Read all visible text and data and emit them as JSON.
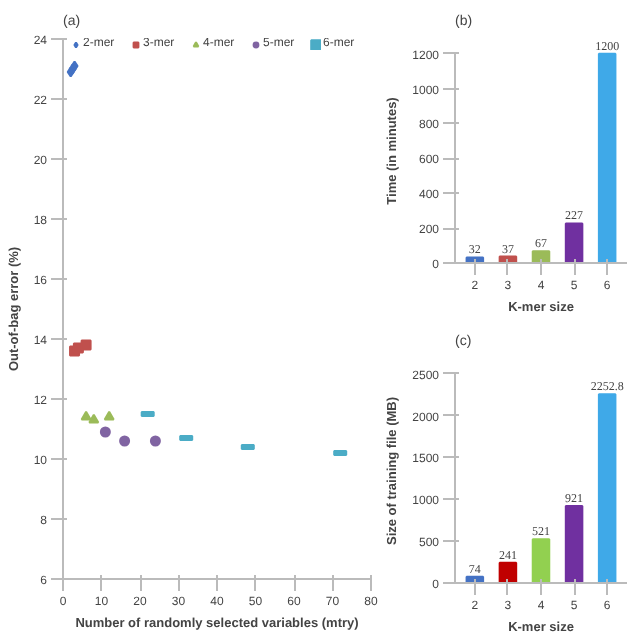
{
  "chart_data": [
    {
      "type": "scatter",
      "title": "(a)",
      "xlabel": "Number of randomly selected variables (mtry)",
      "ylabel": "Out-of-bag error (%)",
      "xlim": [
        0,
        80
      ],
      "xticks": [
        0,
        10,
        20,
        30,
        40,
        50,
        60,
        70,
        80
      ],
      "ylim": [
        6,
        24
      ],
      "yticks": [
        6,
        8,
        10,
        12,
        14,
        16,
        18,
        20,
        22,
        24
      ],
      "grid": false,
      "legend": "top",
      "series": [
        {
          "name": "2-mer",
          "color": "#4472c4",
          "marker": "diamond",
          "x": [
            2,
            2.5,
            3
          ],
          "values": [
            22.9,
            23.0,
            23.1
          ]
        },
        {
          "name": "3-mer",
          "color": "#c0504d",
          "marker": "square",
          "x": [
            3,
            4,
            6
          ],
          "values": [
            13.6,
            13.7,
            13.8
          ]
        },
        {
          "name": "4-mer",
          "color": "#9bbb59",
          "marker": "triangle",
          "x": [
            6,
            8,
            12
          ],
          "values": [
            11.4,
            11.3,
            11.4
          ]
        },
        {
          "name": "5-mer",
          "color": "#8064a2",
          "marker": "circle",
          "x": [
            11,
            16,
            24
          ],
          "values": [
            10.9,
            10.6,
            10.6
          ]
        },
        {
          "name": "6-mer",
          "color": "#4bacc6",
          "x": [
            22,
            32,
            48,
            72
          ],
          "values": [
            11.5,
            10.7,
            10.4,
            10.2
          ]
        }
      ]
    },
    {
      "type": "bar",
      "title": "(b)",
      "xlabel": "K-mer size",
      "ylabel": "Time (in minutes)",
      "categories": [
        "2",
        "3",
        "4",
        "5",
        "6"
      ],
      "values": [
        32,
        37,
        67,
        227,
        1200
      ],
      "colors": [
        "#4472c4",
        "#c0504d",
        "#9bbb59",
        "#7030a0",
        "#3fa9e8"
      ],
      "ylim": [
        0,
        1200
      ],
      "yticks": [
        0,
        200,
        400,
        600,
        800,
        1000,
        1200
      ],
      "data_labels": true,
      "grid": false
    },
    {
      "type": "bar",
      "title": "(c)",
      "xlabel": "K-mer size",
      "ylabel": "Size of training file (MB)",
      "categories": [
        "2",
        "3",
        "4",
        "5",
        "6"
      ],
      "values": [
        74,
        241,
        521,
        921,
        2252.8
      ],
      "colors": [
        "#4472c4",
        "#c00000",
        "#92d050",
        "#7030a0",
        "#3fa9e8"
      ],
      "ylim": [
        0,
        2500
      ],
      "yticks": [
        0,
        500,
        1000,
        1500,
        2000,
        2500
      ],
      "data_labels": true,
      "grid": false
    }
  ]
}
